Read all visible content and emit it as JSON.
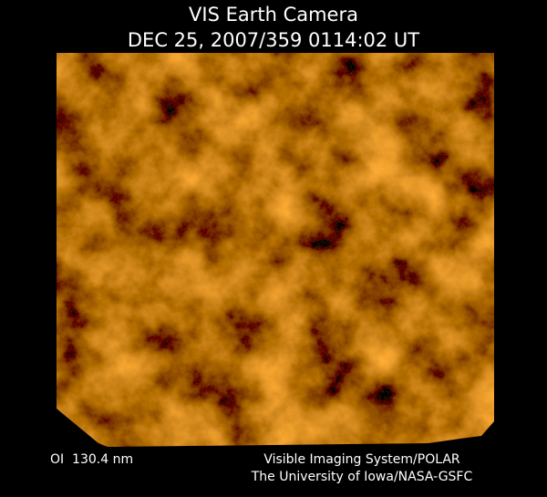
{
  "header": {
    "title": "VIS Earth Camera",
    "timestamp": "DEC 25, 2007/359 0114:02 UT"
  },
  "footer": {
    "filter": "OI  130.4 nm",
    "credits": [
      "Visible Imaging System/POLAR",
      "The University of Iowa/NASA-GSFC"
    ]
  }
}
